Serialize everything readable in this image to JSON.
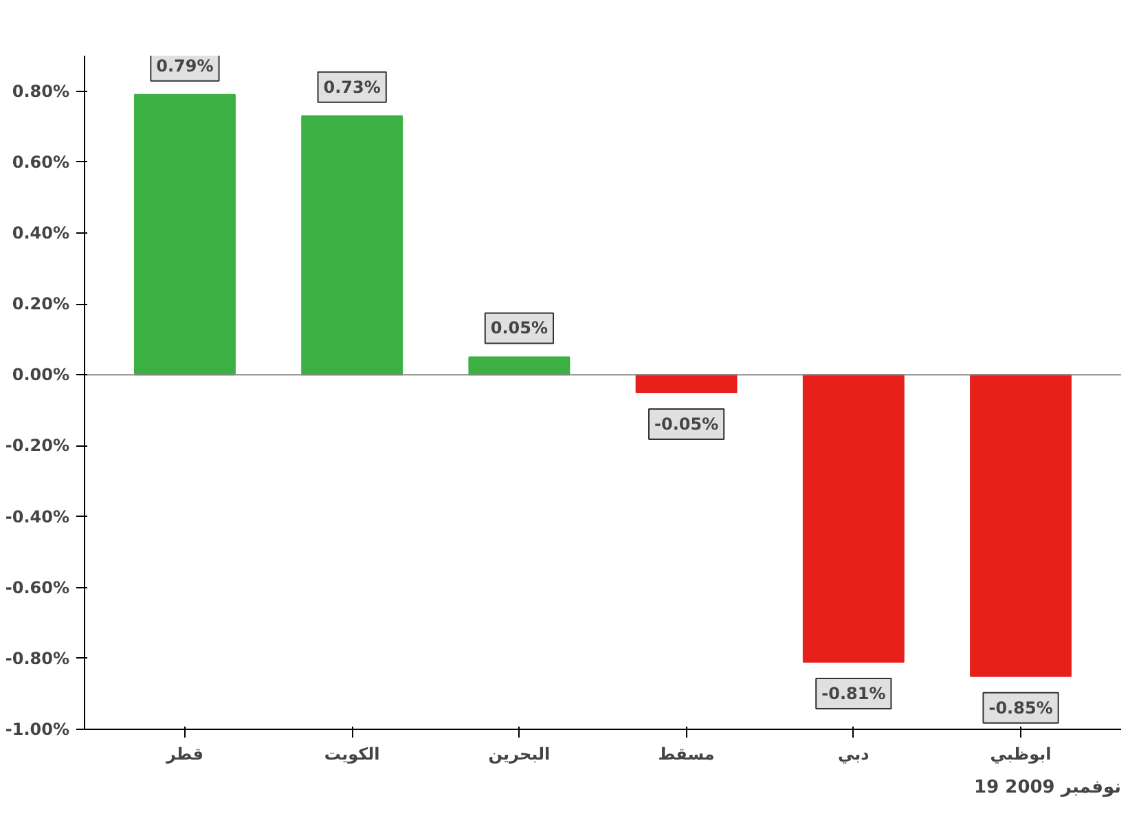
{
  "chart_data": {
    "type": "bar",
    "categories": [
      "قطر",
      "الكويت",
      "البحرين",
      "مسقط",
      "دبي",
      "ابوظبي"
    ],
    "values": [
      0.79,
      0.73,
      0.05,
      -0.05,
      -0.81,
      -0.85
    ],
    "colors": [
      "#3cb043",
      "#3cb043",
      "#3cb043",
      "#e8201c",
      "#e8201c",
      "#e8201c"
    ],
    "value_labels": [
      "0.79%",
      "0.73%",
      "0.05%",
      "-0.05%",
      "-0.81%",
      "-0.85%"
    ],
    "ylim": [
      -1.0,
      0.9
    ],
    "yticks": [
      {
        "value": -1.0,
        "label": "-1.00%"
      },
      {
        "value": -0.8,
        "label": "-0.80%"
      },
      {
        "value": -0.6,
        "label": "-0.60%"
      },
      {
        "value": -0.4,
        "label": "-0.40%"
      },
      {
        "value": -0.2,
        "label": "-0.20%"
      },
      {
        "value": 0.0,
        "label": "0.00%"
      },
      {
        "value": 0.2,
        "label": "0.20%"
      },
      {
        "value": 0.4,
        "label": "0.40%"
      },
      {
        "value": 0.6,
        "label": "0.60%"
      },
      {
        "value": 0.8,
        "label": "0.80%"
      }
    ],
    "annotations": [
      "19 نوفمبر 2009"
    ]
  }
}
